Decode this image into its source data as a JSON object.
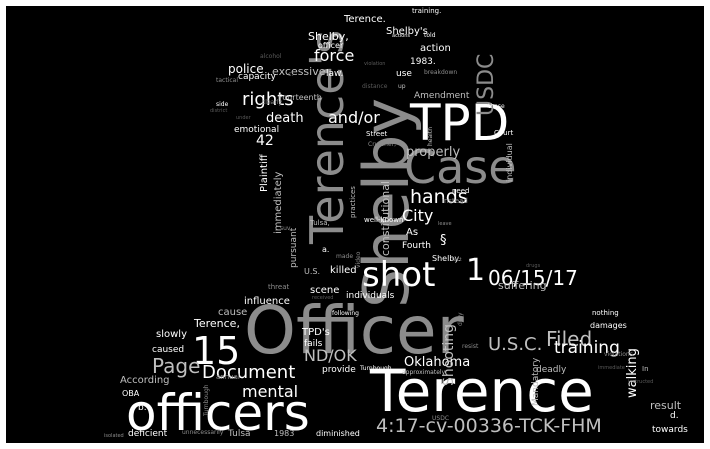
{
  "colors": {
    "background": "#000000",
    "frame": "#ffffff",
    "word_light": "#ffffff",
    "word_mid": "#bfbfbf",
    "word_gray": "#8c8c8c",
    "word_dim": "#5a5a5a"
  },
  "words": {
    "officer": "Officer",
    "terence_big": "Terence",
    "officers": "officers",
    "shelby_big": "Shelby",
    "terences": "Terence's",
    "tpd": "TPD",
    "case": "Case",
    "shot": "shot",
    "one": "1",
    "fifteen": "15",
    "case_no": "4:17-cv-00336-TCK-FHM",
    "date": "06/15/17",
    "filed": "Filed",
    "page": "Page",
    "document": "Document",
    "mental": "mental",
    "nd_ok": "ND/OK",
    "usc": "U.S.C.",
    "oklahoma": "Oklahoma",
    "training": "training",
    "shooting": "Shooting",
    "usdc": "USDC",
    "hands": "hands",
    "city": "City",
    "rights": "rights",
    "and_or": "and/or",
    "force": "force",
    "death": "death",
    "properly": "properly",
    "police": "police",
    "excessive": "excessive",
    "shelby_comma": "Shelby,",
    "terence_dot": "Terence.",
    "shelbys": "Shelby's",
    "action": "action",
    "year_1983": "1983.",
    "use": "use",
    "law": "law.",
    "amendment": "Amendment",
    "fourteenth": "Fourteenth",
    "capacity": "capacity",
    "forty_two": "42",
    "emotional": "emotional",
    "plaintiff": "Plaintiff",
    "constitutional": "constitutional",
    "immediately": "immediately",
    "pursuant": "pursuant",
    "as": "As",
    "fourth": "Fourth",
    "section": "§",
    "killed": "killed",
    "scene": "scene",
    "individuals": "individuals",
    "suffering": "suffering",
    "walking": "walking",
    "result": "result",
    "towards": "towards",
    "deadly": "deadly",
    "mandatory": "Mandatory",
    "damages": "damages",
    "influence": "influence",
    "cause": "cause",
    "terence_comma": "Terence,",
    "slowly": "slowly",
    "caused": "caused",
    "tpds": "TPD's",
    "fails": "fails",
    "according": "According",
    "oba": "OBA",
    "provide": "provide",
    "b": "b.",
    "d": "d.",
    "deficient": "deficient",
    "tulsa": "Tulsa",
    "year_1983b": "1983",
    "diminished": "diminished",
    "u_s": "U.S.",
    "a": "a.",
    "shelby_dot": "Shelby.",
    "training_dot": "training.",
    "officer_small": "officer",
    "alcohol": "alcohol",
    "tactical": "tactical",
    "clearly": "clearly",
    "side": "side",
    "district": "district",
    "under": "under",
    "breakdown": "breakdown",
    "health": "health",
    "street": "Street",
    "crutcher": "Crutcher,",
    "court": "Court",
    "individual": "individual",
    "need": "need",
    "instead": "instead",
    "well_known": "well-known",
    "made": "made",
    "tulsa_comma": "Tulsa,",
    "suv": "suv.",
    "threat": "threat",
    "video": "video",
    "following": "following",
    "unnecessarily": "unnecessarily",
    "annual": "annual",
    "turnbough": "Turnbough",
    "turnbough_dot": "Turnbough.",
    "duty": "duty",
    "nothing": "nothing",
    "violations": "violations",
    "practices": "practices",
    "these": "these",
    "told": "told",
    "actions": "actions",
    "received": "received",
    "approximately": "approximately",
    "violation": "violation",
    "distance": "distance",
    "instructed": "instructed",
    "isolated": "isolated",
    "immediate": "immediate",
    "in": "In",
    "usdc_small": "USDC",
    "resist": "resist",
    "drugs": "drugs",
    "fact": "fact",
    "leave": "leave",
    "up": "up",
    "c": "c."
  }
}
